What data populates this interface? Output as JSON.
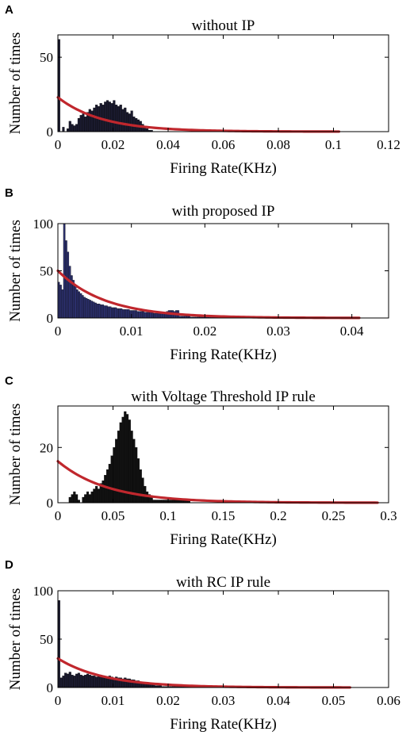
{
  "colors": {
    "bar_dark": "#1a1a2e",
    "bar_blue": "#2b2f6b",
    "bar_black": "#111111",
    "fit_line": "#c0272d"
  },
  "chart_data": [
    {
      "panel": "A",
      "type": "bar",
      "title": "without IP",
      "xlabel": "Firing Rate(KHz)",
      "ylabel": "Number of times",
      "xlim": [
        0,
        0.12
      ],
      "ylim": [
        0,
        65
      ],
      "xticks": [
        "0",
        "0.02",
        "0.04",
        "0.06",
        "0.08",
        "0.1",
        "0.12"
      ],
      "xtick_values": [
        0,
        0.02,
        0.04,
        0.06,
        0.08,
        0.1,
        0.12
      ],
      "yticks": [
        "0",
        "50"
      ],
      "ytick_values": [
        0,
        50
      ],
      "bar_color": "#1a1a2e",
      "bins": {
        "start": 0,
        "width": 0.0008,
        "counts": [
          62,
          0,
          3,
          0,
          2,
          7,
          5,
          4,
          5,
          9,
          11,
          12,
          10,
          13,
          15,
          14,
          16,
          18,
          17,
          19,
          18,
          20,
          21,
          20,
          19,
          21,
          18,
          17,
          18,
          15,
          16,
          13,
          12,
          14,
          10,
          9,
          8,
          7,
          5,
          3,
          2,
          1,
          1
        ]
      },
      "fit": {
        "amplitude": 23,
        "decay": 0.016,
        "x_end": 0.102
      }
    },
    {
      "panel": "B",
      "type": "bar",
      "title": "with proposed IP",
      "xlabel": "Firing Rate(KHz)",
      "ylabel": "Number of times",
      "xlim": [
        0,
        0.045
      ],
      "ylim": [
        0,
        100
      ],
      "xticks": [
        "0",
        "0.01",
        "0.02",
        "0.03",
        "0.04"
      ],
      "xtick_values": [
        0,
        0.01,
        0.02,
        0.03,
        0.04
      ],
      "yticks": [
        "0",
        "50",
        "100"
      ],
      "ytick_values": [
        0,
        50,
        100
      ],
      "bar_color": "#2b2f6b",
      "bins": {
        "start": 0,
        "width": 0.00025,
        "counts": [
          38,
          35,
          30,
          100,
          82,
          70,
          55,
          45,
          40,
          35,
          30,
          28,
          26,
          24,
          22,
          21,
          20,
          19,
          18,
          17,
          16,
          15,
          15,
          14,
          14,
          13,
          13,
          12,
          12,
          11,
          11,
          11,
          10,
          10,
          10,
          9,
          9,
          9,
          9,
          8,
          8,
          8,
          8,
          7,
          7,
          7,
          7,
          6,
          6,
          6,
          6,
          6,
          5,
          5,
          5,
          5,
          5,
          5,
          6,
          7,
          8,
          8,
          8,
          7,
          8,
          8,
          2,
          2,
          2,
          2,
          2,
          2,
          1,
          1,
          1,
          1,
          1,
          1,
          1,
          1,
          1,
          1,
          1,
          1,
          1,
          1,
          1,
          1,
          1,
          1,
          1,
          1,
          1,
          1,
          1,
          1,
          1,
          1,
          1,
          1,
          1,
          1,
          1,
          1,
          1,
          1,
          1,
          1,
          1,
          1,
          1,
          1,
          1,
          1,
          1,
          1,
          1,
          1,
          1,
          1,
          1,
          1,
          1,
          1,
          1,
          1,
          1,
          1,
          1,
          1,
          1,
          1,
          1,
          1,
          1,
          1,
          1,
          1,
          1,
          1,
          1,
          1,
          1,
          1,
          1,
          1,
          1,
          1,
          1,
          1,
          1,
          1,
          1,
          1,
          1,
          1,
          1,
          1,
          1,
          1,
          1,
          1,
          1
        ]
      },
      "fit": {
        "amplitude": 50,
        "decay": 0.0065,
        "x_end": 0.041
      }
    },
    {
      "panel": "C",
      "type": "bar",
      "title": "with Voltage Threshold IP rule",
      "xlabel": "Firing Rate(KHz)",
      "ylabel": "Number of times",
      "xlim": [
        0,
        0.3
      ],
      "ylim": [
        0,
        35
      ],
      "xticks": [
        "0",
        "0.05",
        "0.1",
        "0.15",
        "0.2",
        "0.25",
        "0.3"
      ],
      "xtick_values": [
        0,
        0.05,
        0.1,
        0.15,
        0.2,
        0.25,
        0.3
      ],
      "yticks": [
        "0",
        "20"
      ],
      "ytick_values": [
        0,
        20
      ],
      "bar_color": "#111111",
      "bins": {
        "start": 0.01,
        "width": 0.002,
        "counts": [
          2,
          3,
          4,
          3,
          1,
          0,
          2,
          3,
          4,
          3,
          4,
          5,
          6,
          5,
          7,
          8,
          10,
          12,
          14,
          17,
          20,
          23,
          26,
          29,
          31,
          33,
          32,
          30,
          26,
          23,
          20,
          16,
          12,
          9,
          6,
          4,
          3,
          2,
          1,
          1,
          1,
          1,
          1,
          1,
          1,
          1,
          1,
          1,
          1,
          1,
          1,
          1,
          1,
          1,
          1
        ]
      },
      "fit": {
        "amplitude": 15,
        "decay": 0.045,
        "x_end": 0.29
      }
    },
    {
      "panel": "D",
      "type": "bar",
      "title": "with RC IP rule",
      "xlabel": "Firing Rate(KHz)",
      "ylabel": "Number of times",
      "xlim": [
        0,
        0.06
      ],
      "ylim": [
        0,
        100
      ],
      "xticks": [
        "0",
        "0.01",
        "0.02",
        "0.03",
        "0.04",
        "0.05",
        "0.06"
      ],
      "xtick_values": [
        0,
        0.01,
        0.02,
        0.03,
        0.04,
        0.05,
        0.06
      ],
      "yticks": [
        "0",
        "50",
        "100"
      ],
      "ytick_values": [
        0,
        50,
        100
      ],
      "bar_color": "#1a1a2e",
      "bins": {
        "start": 0,
        "width": 0.0004,
        "counts": [
          90,
          10,
          12,
          15,
          14,
          16,
          13,
          12,
          14,
          15,
          13,
          12,
          13,
          14,
          13,
          12,
          12,
          11,
          12,
          13,
          12,
          11,
          11,
          12,
          11,
          10,
          11,
          10,
          10,
          9,
          10,
          9,
          9,
          8,
          8,
          7,
          7,
          6,
          5,
          5,
          4,
          4,
          3,
          3,
          2,
          2,
          2,
          1,
          1,
          1,
          1,
          1,
          1,
          1,
          1,
          1,
          1,
          1,
          1,
          1,
          1,
          1,
          1,
          1,
          1,
          1,
          1,
          1,
          1,
          1,
          1,
          1,
          1,
          1,
          1,
          1,
          1,
          1,
          1,
          1
        ]
      },
      "fit": {
        "amplitude": 30,
        "decay": 0.0085,
        "x_end": 0.053
      }
    }
  ]
}
